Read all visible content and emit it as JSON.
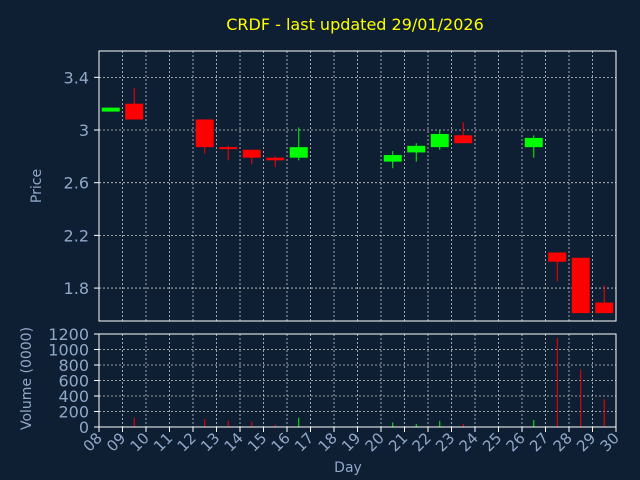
{
  "chart_data": {
    "type": "candlestick",
    "title": "CRDF - last updated 29/01/2026",
    "xlabel": "Day",
    "price_panel": {
      "ylabel": "Price",
      "yticks": [
        "3.4",
        "3",
        "2.6",
        "2.2",
        "1.8"
      ],
      "ylim": [
        1.55,
        3.6
      ]
    },
    "volume_panel": {
      "ylabel": "Volume (0000)",
      "yticks": [
        "1200",
        "1000",
        "800",
        "600",
        "400",
        "200",
        "0"
      ],
      "ylim": [
        0,
        1200
      ]
    },
    "x_ticks": [
      "08",
      "09",
      "10",
      "11",
      "12",
      "13",
      "14",
      "15",
      "16",
      "17",
      "18",
      "19",
      "20",
      "21",
      "22",
      "23",
      "24",
      "25",
      "26",
      "27",
      "28",
      "29",
      "30"
    ],
    "grid": true,
    "colors": {
      "background": "#0f1f33",
      "plot_background": "#0f1f33",
      "axis": "#ffffff",
      "grid": "#c8c8c8",
      "title": "#ffff00",
      "label": "#8fa8c8",
      "up": "#00ff00",
      "down": "#ff0000"
    },
    "candles": [
      {
        "day": 8,
        "open": 3.14,
        "high": 3.17,
        "low": 3.14,
        "close": 3.17
      },
      {
        "day": 9,
        "open": 3.2,
        "high": 3.32,
        "low": 3.08,
        "close": 3.08
      },
      {
        "day": 12,
        "open": 3.08,
        "high": 3.08,
        "low": 2.82,
        "close": 2.87
      },
      {
        "day": 13,
        "open": 2.87,
        "high": 2.88,
        "low": 2.77,
        "close": 2.86
      },
      {
        "day": 14,
        "open": 2.85,
        "high": 2.85,
        "low": 2.74,
        "close": 2.79
      },
      {
        "day": 15,
        "open": 2.79,
        "high": 2.8,
        "low": 2.72,
        "close": 2.77
      },
      {
        "day": 16,
        "open": 2.79,
        "high": 3.02,
        "low": 2.77,
        "close": 2.87
      },
      {
        "day": 20,
        "open": 2.76,
        "high": 2.84,
        "low": 2.71,
        "close": 2.81
      },
      {
        "day": 21,
        "open": 2.83,
        "high": 2.9,
        "low": 2.76,
        "close": 2.88
      },
      {
        "day": 22,
        "open": 2.87,
        "high": 3.0,
        "low": 2.85,
        "close": 2.97
      },
      {
        "day": 23,
        "open": 2.96,
        "high": 3.06,
        "low": 2.9,
        "close": 2.9
      },
      {
        "day": 26,
        "open": 2.87,
        "high": 2.96,
        "low": 2.79,
        "close": 2.94
      },
      {
        "day": 27,
        "open": 2.07,
        "high": 2.07,
        "low": 1.85,
        "close": 2.0
      },
      {
        "day": 28,
        "open": 2.03,
        "high": 2.03,
        "low": 1.61,
        "close": 1.61
      },
      {
        "day": 29,
        "open": 1.69,
        "high": 1.82,
        "low": 1.61,
        "close": 1.61
      }
    ],
    "volume": [
      {
        "day": 8,
        "value": 2,
        "dir": "up"
      },
      {
        "day": 9,
        "value": 120,
        "dir": "down"
      },
      {
        "day": 12,
        "value": 100,
        "dir": "down"
      },
      {
        "day": 13,
        "value": 80,
        "dir": "down"
      },
      {
        "day": 14,
        "value": 70,
        "dir": "down"
      },
      {
        "day": 15,
        "value": 30,
        "dir": "down"
      },
      {
        "day": 16,
        "value": 120,
        "dir": "up"
      },
      {
        "day": 20,
        "value": 60,
        "dir": "up"
      },
      {
        "day": 21,
        "value": 40,
        "dir": "up"
      },
      {
        "day": 22,
        "value": 80,
        "dir": "up"
      },
      {
        "day": 23,
        "value": 40,
        "dir": "down"
      },
      {
        "day": 26,
        "value": 90,
        "dir": "up"
      },
      {
        "day": 27,
        "value": 1150,
        "dir": "down"
      },
      {
        "day": 28,
        "value": 740,
        "dir": "down"
      },
      {
        "day": 29,
        "value": 360,
        "dir": "down"
      }
    ]
  }
}
